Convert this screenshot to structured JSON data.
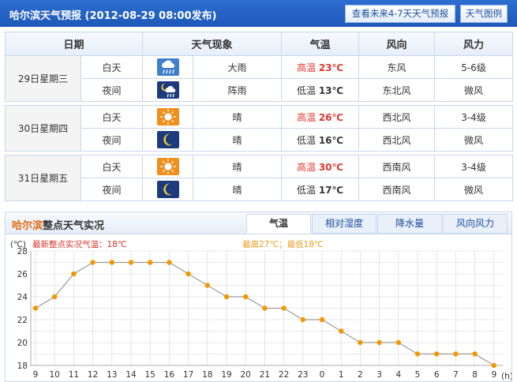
{
  "forecast": {
    "title": "哈尔滨天气预报 (2012-08-29  08:00发布)",
    "week_button": "查看未来4-7天天气预报",
    "legend_button": "天气图例",
    "columns": [
      "日期",
      "天气现象",
      "气温",
      "风向",
      "风力"
    ],
    "days": [
      {
        "date": "29日星期三",
        "rows": [
          {
            "period": "白天",
            "icon": "rain-cloud-icon",
            "weather": "大雨",
            "temp_label": "高温",
            "temp": "23℃",
            "wind_dir": "东风",
            "wind_force": "5-6级"
          },
          {
            "period": "夜间",
            "icon": "night-shower-icon",
            "weather": "阵雨",
            "temp_label": "低温",
            "temp": "13℃",
            "wind_dir": "东北风",
            "wind_force": "微风"
          }
        ]
      },
      {
        "date": "30日星期四",
        "rows": [
          {
            "period": "白天",
            "icon": "sun-icon",
            "weather": "晴",
            "temp_label": "高温",
            "temp": "26℃",
            "wind_dir": "西北风",
            "wind_force": "3-4级"
          },
          {
            "period": "夜间",
            "icon": "moon-icon",
            "weather": "晴",
            "temp_label": "低温",
            "temp": "16℃",
            "wind_dir": "西北风",
            "wind_force": "微风"
          }
        ]
      },
      {
        "date": "31日星期五",
        "rows": [
          {
            "period": "白天",
            "icon": "sun-icon",
            "weather": "晴",
            "temp_label": "高温",
            "temp": "30℃",
            "wind_dir": "西南风",
            "wind_force": "3-4级"
          },
          {
            "period": "夜间",
            "icon": "moon-icon",
            "weather": "晴",
            "temp_label": "低温",
            "temp": "17℃",
            "wind_dir": "西南风",
            "wind_force": "微风"
          }
        ]
      }
    ]
  },
  "live": {
    "city": "哈尔滨",
    "title_rest": "整点天气实况",
    "tabs": [
      "气温",
      "相对湿度",
      "降水量",
      "风向风力"
    ],
    "active_tab": 0
  },
  "chart_data": {
    "type": "line",
    "unit_label": "(℃)",
    "x_unit_label": "(h)",
    "annotation_left": "最新整点实况气温：18℃",
    "annotation_right": "最高27℃；最低18℃",
    "x": [
      "9",
      "10",
      "11",
      "12",
      "13",
      "14",
      "15",
      "16",
      "17",
      "18",
      "19",
      "20",
      "21",
      "22",
      "23",
      "0",
      "1",
      "2",
      "3",
      "4",
      "5",
      "6",
      "7",
      "8",
      "9"
    ],
    "values": [
      23,
      24,
      26,
      27,
      27,
      27,
      27,
      27,
      26,
      25,
      24,
      24,
      23,
      23,
      22,
      22,
      21,
      20,
      20,
      20,
      19,
      19,
      19,
      19,
      18
    ],
    "ylim": [
      18,
      28
    ],
    "yticks": [
      18,
      20,
      22,
      24,
      26,
      28
    ],
    "grid": true,
    "colors": {
      "line": "#9a9a9a",
      "marker": "#f39800",
      "annotation_left": "#d6312b",
      "annotation_right": "#e89a1c",
      "grid": "#d4d4d4"
    }
  }
}
